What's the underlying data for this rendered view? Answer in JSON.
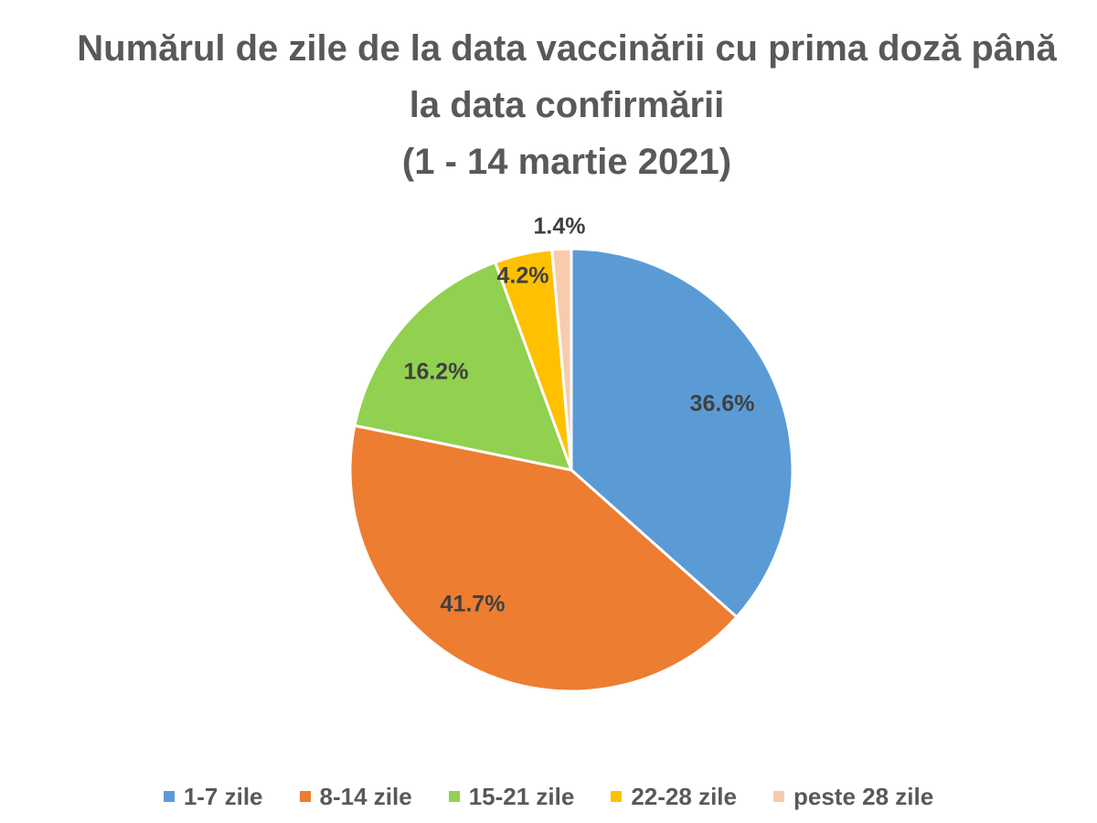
{
  "chart_data": {
    "type": "pie",
    "title": "Numărul de zile de la data vaccinării cu prima doză până la data confirmării (1 - 14 martie 2021)",
    "title_lines": [
      "Numărul de zile de la data vaccinării cu prima doză până",
      "la data confirmării",
      "(1 - 14 martie 2021)"
    ],
    "categories": [
      "1-7 zile",
      "8-14 zile",
      "15-21 zile",
      "22-28 zile",
      "peste 28 zile"
    ],
    "values": [
      36.6,
      41.7,
      16.2,
      4.2,
      1.4
    ],
    "data_labels": [
      "36.6%",
      "41.7%",
      "16.2%",
      "4.2%",
      "1.4%"
    ],
    "colors": [
      "#5B9BD5",
      "#ED7D31",
      "#92D050",
      "#FFC000",
      "#F8CBAD"
    ],
    "start_angle_deg": 0,
    "direction": "clockwise",
    "legend_position": "bottom"
  }
}
